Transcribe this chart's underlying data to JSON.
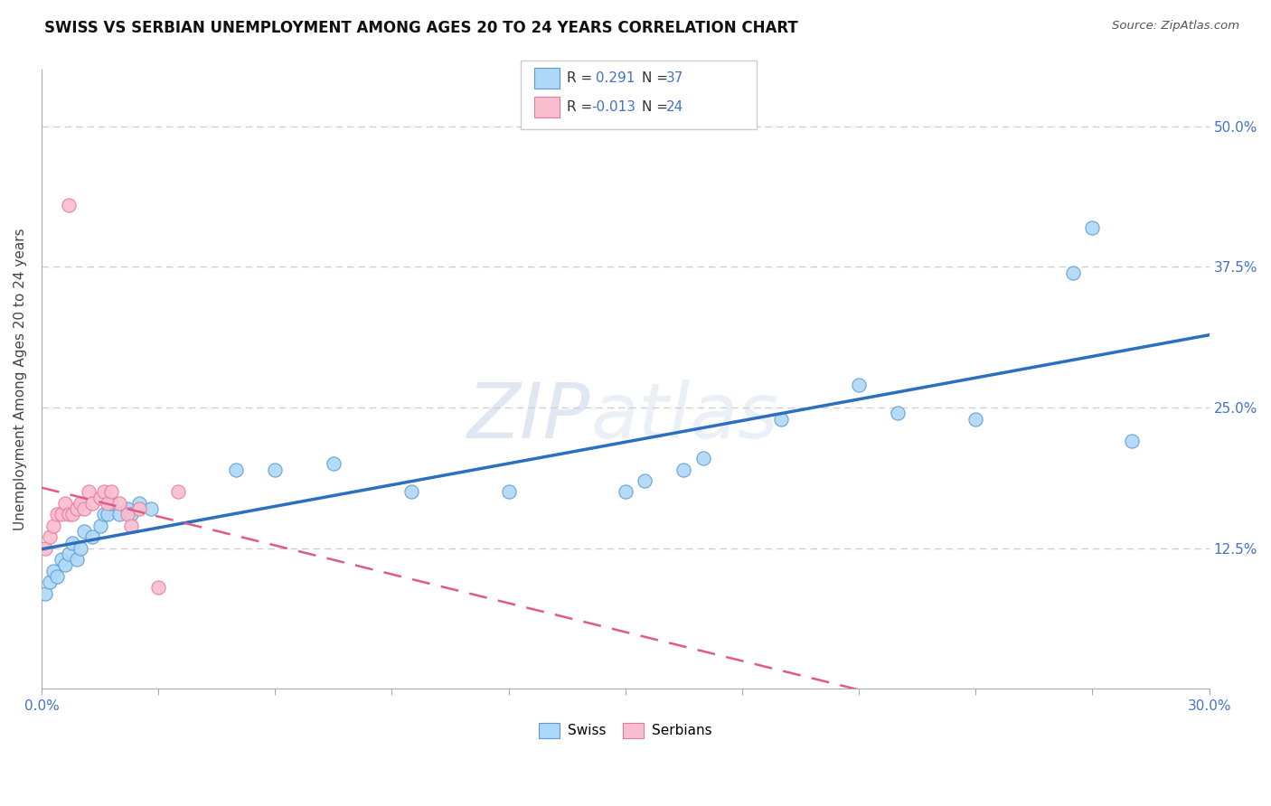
{
  "title": "SWISS VS SERBIAN UNEMPLOYMENT AMONG AGES 20 TO 24 YEARS CORRELATION CHART",
  "source": "Source: ZipAtlas.com",
  "ylabel": "Unemployment Among Ages 20 to 24 years",
  "yticks_labels": [
    "12.5%",
    "25.0%",
    "37.5%",
    "50.0%"
  ],
  "ytick_vals": [
    0.125,
    0.25,
    0.375,
    0.5
  ],
  "xlim": [
    0.0,
    0.3
  ],
  "ylim": [
    0.0,
    0.55
  ],
  "r_swiss": 0.291,
  "n_swiss": 37,
  "r_serbian": -0.013,
  "n_serbian": 24,
  "swiss_color": "#ADD8F7",
  "serbian_color": "#F9BDD0",
  "swiss_edge_color": "#5B9BD5",
  "serbian_edge_color": "#E8799A",
  "swiss_line_color": "#2B6FBE",
  "serbian_line_color": "#E05A82",
  "background_color": "#FFFFFF",
  "legend_swiss_label": "Swiss",
  "legend_serbian_label": "Serbians",
  "swiss_points": [
    [
      0.001,
      0.085
    ],
    [
      0.002,
      0.095
    ],
    [
      0.003,
      0.105
    ],
    [
      0.004,
      0.1
    ],
    [
      0.005,
      0.115
    ],
    [
      0.006,
      0.11
    ],
    [
      0.007,
      0.12
    ],
    [
      0.008,
      0.13
    ],
    [
      0.009,
      0.115
    ],
    [
      0.01,
      0.125
    ],
    [
      0.011,
      0.14
    ],
    [
      0.013,
      0.135
    ],
    [
      0.015,
      0.145
    ],
    [
      0.016,
      0.155
    ],
    [
      0.017,
      0.155
    ],
    [
      0.018,
      0.165
    ],
    [
      0.02,
      0.155
    ],
    [
      0.022,
      0.16
    ],
    [
      0.023,
      0.155
    ],
    [
      0.025,
      0.165
    ],
    [
      0.028,
      0.16
    ],
    [
      0.05,
      0.195
    ],
    [
      0.06,
      0.195
    ],
    [
      0.075,
      0.2
    ],
    [
      0.095,
      0.175
    ],
    [
      0.12,
      0.175
    ],
    [
      0.15,
      0.175
    ],
    [
      0.155,
      0.185
    ],
    [
      0.165,
      0.195
    ],
    [
      0.17,
      0.205
    ],
    [
      0.19,
      0.24
    ],
    [
      0.21,
      0.27
    ],
    [
      0.22,
      0.245
    ],
    [
      0.24,
      0.24
    ],
    [
      0.265,
      0.37
    ],
    [
      0.27,
      0.41
    ],
    [
      0.28,
      0.22
    ]
  ],
  "serbian_points": [
    [
      0.001,
      0.125
    ],
    [
      0.002,
      0.135
    ],
    [
      0.003,
      0.145
    ],
    [
      0.004,
      0.155
    ],
    [
      0.005,
      0.155
    ],
    [
      0.006,
      0.165
    ],
    [
      0.007,
      0.155
    ],
    [
      0.008,
      0.155
    ],
    [
      0.009,
      0.16
    ],
    [
      0.01,
      0.165
    ],
    [
      0.011,
      0.16
    ],
    [
      0.012,
      0.175
    ],
    [
      0.013,
      0.165
    ],
    [
      0.015,
      0.17
    ],
    [
      0.016,
      0.175
    ],
    [
      0.017,
      0.165
    ],
    [
      0.018,
      0.175
    ],
    [
      0.02,
      0.165
    ],
    [
      0.022,
      0.155
    ],
    [
      0.023,
      0.145
    ],
    [
      0.025,
      0.16
    ],
    [
      0.03,
      0.09
    ],
    [
      0.035,
      0.175
    ],
    [
      0.007,
      0.43
    ]
  ]
}
